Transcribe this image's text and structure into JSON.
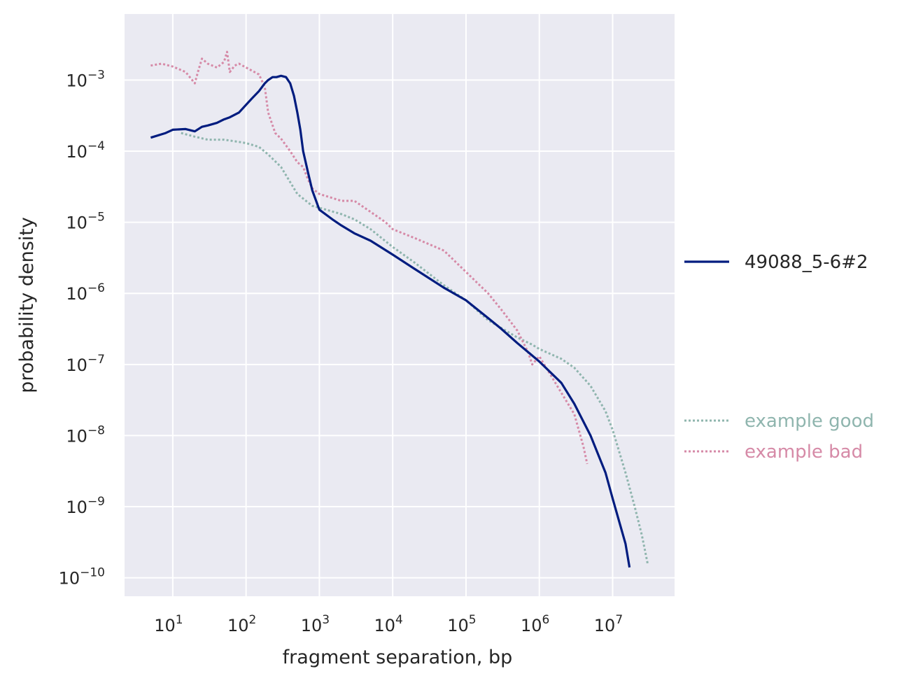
{
  "chart_data": {
    "type": "line",
    "xlabel": "fragment separation, bp",
    "ylabel": "probability density",
    "xscale": "log",
    "yscale": "log",
    "xlim": [
      2.2,
      70000000
    ],
    "ylim": [
      5.5e-11,
      0.0085
    ],
    "grid": true,
    "x_ticks": [
      {
        "base": "10",
        "exp": "1",
        "value": 10
      },
      {
        "base": "10",
        "exp": "2",
        "value": 100
      },
      {
        "base": "10",
        "exp": "3",
        "value": 1000
      },
      {
        "base": "10",
        "exp": "4",
        "value": 10000
      },
      {
        "base": "10",
        "exp": "5",
        "value": 100000
      },
      {
        "base": "10",
        "exp": "6",
        "value": 1000000
      },
      {
        "base": "10",
        "exp": "7",
        "value": 10000000
      }
    ],
    "y_ticks": [
      {
        "base": "10",
        "exp": "−3",
        "value": 0.001
      },
      {
        "base": "10",
        "exp": "−4",
        "value": 0.0001
      },
      {
        "base": "10",
        "exp": "−5",
        "value": 1e-05
      },
      {
        "base": "10",
        "exp": "−6",
        "value": 1e-06
      },
      {
        "base": "10",
        "exp": "−7",
        "value": 1e-07
      },
      {
        "base": "10",
        "exp": "−8",
        "value": 1e-08
      },
      {
        "base": "10",
        "exp": "−9",
        "value": 1e-09
      },
      {
        "base": "10",
        "exp": "−10",
        "value": 1e-10
      }
    ],
    "legend_placement": "outside-right",
    "series": [
      {
        "name": "example good",
        "color": "#8fb5ae",
        "style": "dotted",
        "legend_group": "bottom",
        "x": [
          13,
          20,
          30,
          50,
          80,
          100,
          150,
          200,
          300,
          500,
          800,
          1000,
          2000,
          3000,
          5000,
          10000,
          20000,
          50000,
          100000,
          200000,
          500000,
          800000,
          1000000,
          2000000,
          3000000,
          5000000,
          8000000,
          10000000,
          15000000,
          20000000,
          25000000,
          30000000
        ],
        "y": [
          0.00018,
          0.00016,
          0.000145,
          0.000145,
          0.000135,
          0.00013,
          0.000115,
          9e-05,
          6e-05,
          2.5e-05,
          1.7e-05,
          1.6e-05,
          1.3e-05,
          1.1e-05,
          8e-06,
          4.5e-06,
          2.7e-06,
          1.3e-06,
          8e-07,
          4.2e-07,
          2.4e-07,
          1.9e-07,
          1.65e-07,
          1.2e-07,
          9e-08,
          5e-08,
          2.2e-08,
          1.2e-08,
          3e-09,
          1e-09,
          4e-10,
          1.6e-10
        ]
      },
      {
        "name": "example bad",
        "color": "#d68aa7",
        "style": "dotted",
        "legend_group": "bottom",
        "x": [
          5,
          7,
          10,
          15,
          20,
          22,
          25,
          30,
          40,
          50,
          55,
          60,
          70,
          80,
          100,
          150,
          180,
          200,
          250,
          300,
          400,
          500,
          600,
          700,
          800,
          1000,
          2000,
          3000,
          5000,
          8000,
          10000,
          20000,
          50000,
          100000,
          200000,
          300000,
          500000,
          700000,
          800000,
          1000000,
          2000000,
          3000000,
          4000000,
          4500000
        ],
        "y": [
          0.0016,
          0.0017,
          0.00155,
          0.0013,
          0.0009,
          0.0013,
          0.002,
          0.0017,
          0.0015,
          0.0018,
          0.0025,
          0.0013,
          0.0016,
          0.0017,
          0.0015,
          0.0012,
          0.0008,
          0.00035,
          0.00018,
          0.00015,
          0.0001,
          7e-05,
          6e-05,
          4e-05,
          3e-05,
          2.5e-05,
          2e-05,
          2e-05,
          1.4e-05,
          1e-05,
          8e-06,
          6e-06,
          4e-06,
          2e-06,
          1e-06,
          6e-07,
          3e-07,
          1.5e-07,
          1e-07,
          1.3e-07,
          4e-08,
          2e-08,
          7e-09,
          4e-09
        ]
      },
      {
        "name": "49088_5-6#2",
        "color": "#001c7f",
        "style": "solid",
        "legend_group": "top",
        "x": [
          5,
          8,
          10,
          15,
          20,
          25,
          30,
          40,
          50,
          60,
          80,
          100,
          120,
          150,
          180,
          200,
          230,
          260,
          300,
          350,
          400,
          450,
          500,
          550,
          600,
          700,
          800,
          1000,
          1500,
          2000,
          3000,
          5000,
          10000,
          20000,
          50000,
          100000,
          200000,
          300000,
          500000,
          1000000,
          2000000,
          3000000,
          5000000,
          8000000,
          10000000,
          15000000,
          17000000
        ],
        "y": [
          0.000155,
          0.00018,
          0.0002,
          0.000205,
          0.00019,
          0.00022,
          0.00023,
          0.00025,
          0.00028,
          0.0003,
          0.00035,
          0.00045,
          0.00055,
          0.0007,
          0.0009,
          0.001,
          0.0011,
          0.0011,
          0.00115,
          0.0011,
          0.0009,
          0.0006,
          0.00035,
          0.0002,
          0.0001,
          5e-05,
          2.8e-05,
          1.5e-05,
          1.1e-05,
          9e-06,
          7e-06,
          5.5e-06,
          3.5e-06,
          2.2e-06,
          1.2e-06,
          8e-07,
          4.5e-07,
          3.2e-07,
          2e-07,
          1.1e-07,
          5.5e-08,
          2.8e-08,
          1e-08,
          3e-09,
          1.3e-09,
          3e-10,
          1.4e-10
        ]
      }
    ]
  }
}
